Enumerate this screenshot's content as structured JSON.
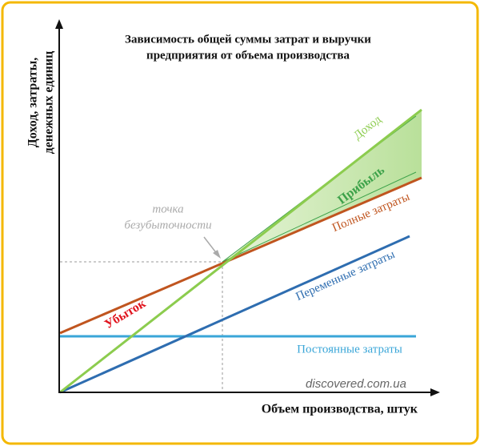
{
  "title": [
    "Зависимость общей суммы затрат и выручки",
    "предприятия от объема производства"
  ],
  "y_axis_label": [
    "Доход, затраты,",
    "денежных единиц"
  ],
  "x_axis_label": "Объем производства, штук",
  "lines": {
    "revenue": "Доход",
    "profit": "Прибыль",
    "total_costs": "Полные затраты",
    "variable_costs": "Переменные затраты",
    "fixed_costs": "Постоянные затраты",
    "loss": "Убыток"
  },
  "break_even": [
    "точка",
    "безубыточности"
  ],
  "watermark": "discovered.com.ua"
}
